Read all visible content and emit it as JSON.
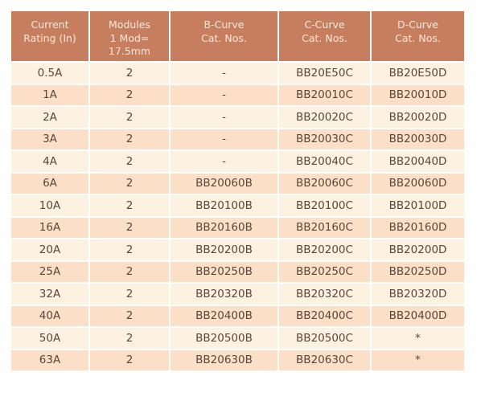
{
  "chart_data": {
    "type": "table",
    "columns": [
      "Current\nRating (In)",
      "Modules\n1 Mod=\n17.5mm",
      "B-Curve\nCat. Nos.",
      "C-Curve\nCat. Nos.",
      "D-Curve\nCat. Nos."
    ],
    "rows": [
      [
        "0.5A",
        "2",
        "-",
        "BB20E50C",
        "BB20E50D"
      ],
      [
        "1A",
        "2",
        "-",
        "BB20010C",
        "BB20010D"
      ],
      [
        "2A",
        "2",
        "-",
        "BB20020C",
        "BB20020D"
      ],
      [
        "3A",
        "2",
        "-",
        "BB20030C",
        "BB20030D"
      ],
      [
        "4A",
        "2",
        "-",
        "BB20040C",
        "BB20040D"
      ],
      [
        "6A",
        "2",
        "BB20060B",
        "BB20060C",
        "BB20060D"
      ],
      [
        "10A",
        "2",
        "BB20100B",
        "BB20100C",
        "BB20100D"
      ],
      [
        "16A",
        "2",
        "BB20160B",
        "BB20160C",
        "BB20160D"
      ],
      [
        "20A",
        "2",
        "BB20200B",
        "BB20200C",
        "BB20200D"
      ],
      [
        "25A",
        "2",
        "BB20250B",
        "BB20250C",
        "BB20250D"
      ],
      [
        "32A",
        "2",
        "BB20320B",
        "BB20320C",
        "BB20320D"
      ],
      [
        "40A",
        "2",
        "BB20400B",
        "BB20400C",
        "BB20400D"
      ],
      [
        "50A",
        "2",
        "BB20500B",
        "BB20500C",
        "*"
      ],
      [
        "63A",
        "2",
        "BB20630B",
        "BB20630C",
        "*"
      ]
    ]
  },
  "colors": {
    "page_bg": "#ffffff",
    "header_bg": "#c67e5e",
    "header_text": "#f9e9dc",
    "row_light": "#fdf1e1",
    "row_dark": "#fbdfc6",
    "cell_text": "#59463a",
    "border": "#ffffff"
  }
}
